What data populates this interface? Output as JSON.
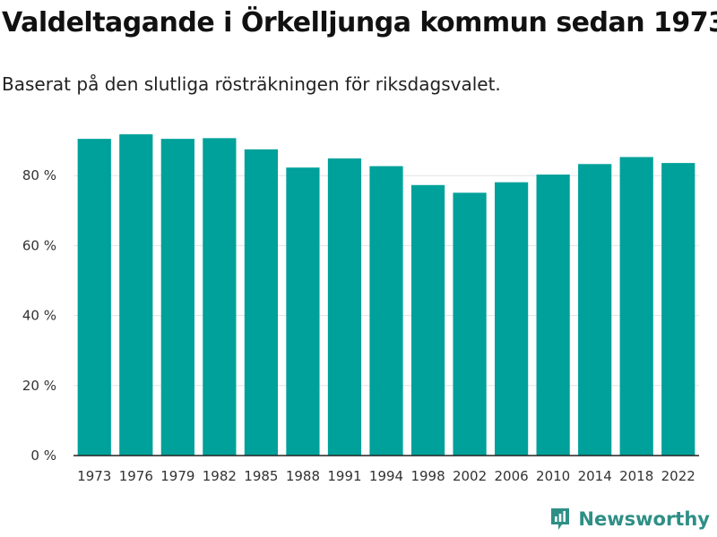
{
  "title": "Valdeltagande i Örkelljunga kommun sedan 1973",
  "subtitle": "Baserat på den slutliga rösträkningen för riksdagsvalet.",
  "brand": {
    "name": "Newsworthy",
    "icon": "newsworthy-logo-icon"
  },
  "colors": {
    "bar": "#00a19a",
    "grid": "#e3e3e3",
    "axis": "#222222",
    "brand": "#2e8f86"
  },
  "chart_data": {
    "type": "bar",
    "title": "Valdeltagande i Örkelljunga kommun sedan 1973",
    "xlabel": "",
    "ylabel": "",
    "ylim": [
      0,
      100
    ],
    "yticks": [
      0,
      20,
      40,
      60,
      80
    ],
    "ytick_labels": [
      "0 %",
      "20 %",
      "40 %",
      "60 %",
      "80 %"
    ],
    "categories": [
      "1973",
      "1976",
      "1979",
      "1982",
      "1985",
      "1988",
      "1991",
      "1994",
      "1998",
      "2002",
      "2006",
      "2010",
      "2014",
      "2018",
      "2022"
    ],
    "values": [
      90.5,
      91.8,
      90.5,
      90.7,
      87.5,
      82.3,
      84.9,
      82.7,
      77.3,
      75.1,
      78.1,
      80.3,
      83.3,
      85.3,
      83.6
    ],
    "grid": true
  }
}
